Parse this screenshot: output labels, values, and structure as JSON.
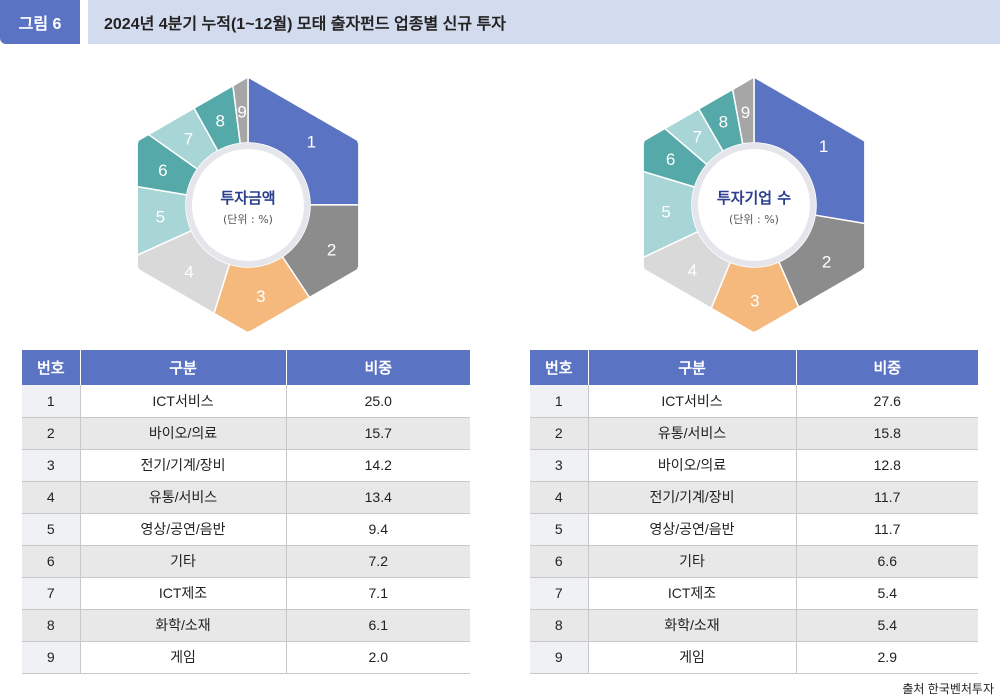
{
  "header": {
    "figure_label": "그림 6",
    "title": "2024년 4분기 누적(1~12월) 모태 출자펀드 업종별 신규 투자"
  },
  "chart_data": [
    {
      "type": "pie",
      "title": "투자금액",
      "subtitle": "(단위 : %)",
      "labels": [
        "1",
        "2",
        "3",
        "4",
        "5",
        "6",
        "7",
        "8",
        "9"
      ],
      "values": [
        25.0,
        15.7,
        14.2,
        13.4,
        9.4,
        7.2,
        7.1,
        6.1,
        2.0
      ],
      "colors": [
        "#5b73c3",
        "#8c8c8c",
        "#f5b97e",
        "#d9d9d9",
        "#a8d5d6",
        "#55a9a8",
        "#a8d5d6",
        "#55a9a8",
        "#a6a6a6"
      ]
    },
    {
      "type": "pie",
      "title": "투자기업 수",
      "subtitle": "(단위 : %)",
      "labels": [
        "1",
        "2",
        "3",
        "4",
        "5",
        "6",
        "7",
        "8",
        "9"
      ],
      "values": [
        27.6,
        15.8,
        12.8,
        11.7,
        11.7,
        6.6,
        5.4,
        5.4,
        2.9
      ],
      "colors": [
        "#5b73c3",
        "#8c8c8c",
        "#f5b97e",
        "#d9d9d9",
        "#a8d5d6",
        "#55a9a8",
        "#a8d5d6",
        "#55a9a8",
        "#a6a6a6"
      ]
    }
  ],
  "tables": [
    {
      "headers": [
        "번호",
        "구분",
        "비중"
      ],
      "rows": [
        [
          "1",
          "ICT서비스",
          "25.0"
        ],
        [
          "2",
          "바이오/의료",
          "15.7"
        ],
        [
          "3",
          "전기/기계/장비",
          "14.2"
        ],
        [
          "4",
          "유통/서비스",
          "13.4"
        ],
        [
          "5",
          "영상/공연/음반",
          "9.4"
        ],
        [
          "6",
          "기타",
          "7.2"
        ],
        [
          "7",
          "ICT제조",
          "7.1"
        ],
        [
          "8",
          "화학/소재",
          "6.1"
        ],
        [
          "9",
          "게임",
          "2.0"
        ]
      ]
    },
    {
      "headers": [
        "번호",
        "구분",
        "비중"
      ],
      "rows": [
        [
          "1",
          "ICT서비스",
          "27.6"
        ],
        [
          "2",
          "유통/서비스",
          "15.8"
        ],
        [
          "3",
          "바이오/의료",
          "12.8"
        ],
        [
          "4",
          "전기/기계/장비",
          "11.7"
        ],
        [
          "5",
          "영상/공연/음반",
          "11.7"
        ],
        [
          "6",
          "기타",
          "6.6"
        ],
        [
          "7",
          "ICT제조",
          "5.4"
        ],
        [
          "8",
          "화학/소재",
          "5.4"
        ],
        [
          "9",
          "게임",
          "2.9"
        ]
      ]
    }
  ],
  "source": "출처 한국벤처투자"
}
